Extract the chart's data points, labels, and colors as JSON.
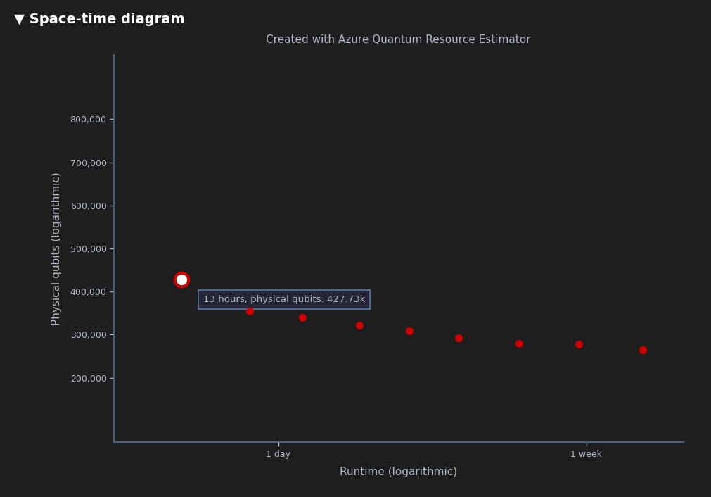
{
  "title": "Created with Azure Quantum Resource Estimator",
  "xlabel": "Runtime (logarithmic)",
  "ylabel": "Physical qubits (logarithmic)",
  "dark_bg": "#1e1e1e",
  "text_color": "#b0b8c8",
  "axis_color": "#4a6080",
  "header_text": "▼ Space-time diagram",
  "tooltip_text": "13 hours, physical qubits: 427.73k",
  "points_x_hours": [
    13,
    20,
    28,
    40,
    55,
    75,
    110,
    160,
    240
  ],
  "points_y_qubits": [
    427730,
    355000,
    340000,
    322000,
    308000,
    293000,
    280000,
    278000,
    265000
  ],
  "highlight_index": 0,
  "dot_color": "#cc0000",
  "highlight_outer_color": "#cc0000",
  "highlight_inner_color": "#ffffff",
  "x_tick_hours": [
    24,
    168
  ],
  "x_tick_labels": [
    "1 day",
    "1 week"
  ],
  "y_ticks": [
    200000,
    300000,
    400000,
    500000,
    600000,
    700000,
    800000
  ],
  "y_tick_labels": [
    "200,000",
    "300,000",
    "400,000",
    "500,000",
    "600,000",
    "700,000",
    "800,000"
  ],
  "ylim": [
    50000,
    950000
  ],
  "xlim_hours": [
    8.5,
    310
  ],
  "tooltip_bg": "#252535",
  "tooltip_edge": "#5577aa",
  "header_fontsize": 14,
  "title_fontsize": 11,
  "tick_fontsize": 9,
  "label_fontsize": 11
}
